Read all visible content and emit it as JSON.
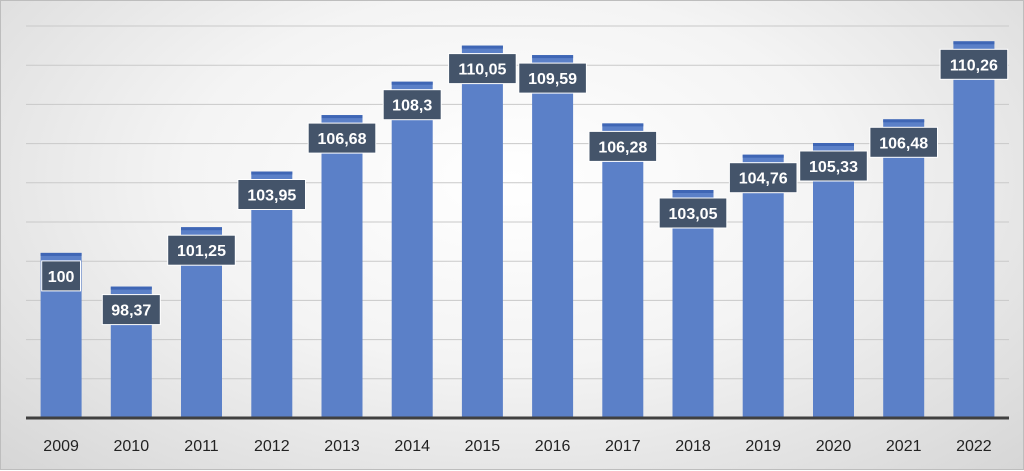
{
  "chart_data": {
    "type": "bar",
    "title": "",
    "xlabel": "",
    "ylabel": "",
    "categories": [
      "2009",
      "2010",
      "2011",
      "2012",
      "2013",
      "2014",
      "2015",
      "2016",
      "2017",
      "2018",
      "2019",
      "2020",
      "2021",
      "2022"
    ],
    "values": [
      100,
      98.37,
      101.25,
      103.95,
      106.68,
      108.3,
      110.05,
      109.59,
      106.28,
      103.05,
      104.76,
      105.33,
      106.48,
      110.26
    ],
    "data_labels": [
      "100",
      "98,37",
      "101,25",
      "103,95",
      "106,68",
      "108,3",
      "110,05",
      "109,59",
      "106,28",
      "103,05",
      "104,76",
      "105,33",
      "106,48",
      "110,26"
    ],
    "ylim": [
      92,
      111
    ],
    "grid": true,
    "legend": "none",
    "colors": {
      "bar": "#5b80c8",
      "bar_top": "#3f66b5",
      "label_bg": "#44546a",
      "gridline": "#c9c9c9",
      "axis": "#404040"
    }
  }
}
